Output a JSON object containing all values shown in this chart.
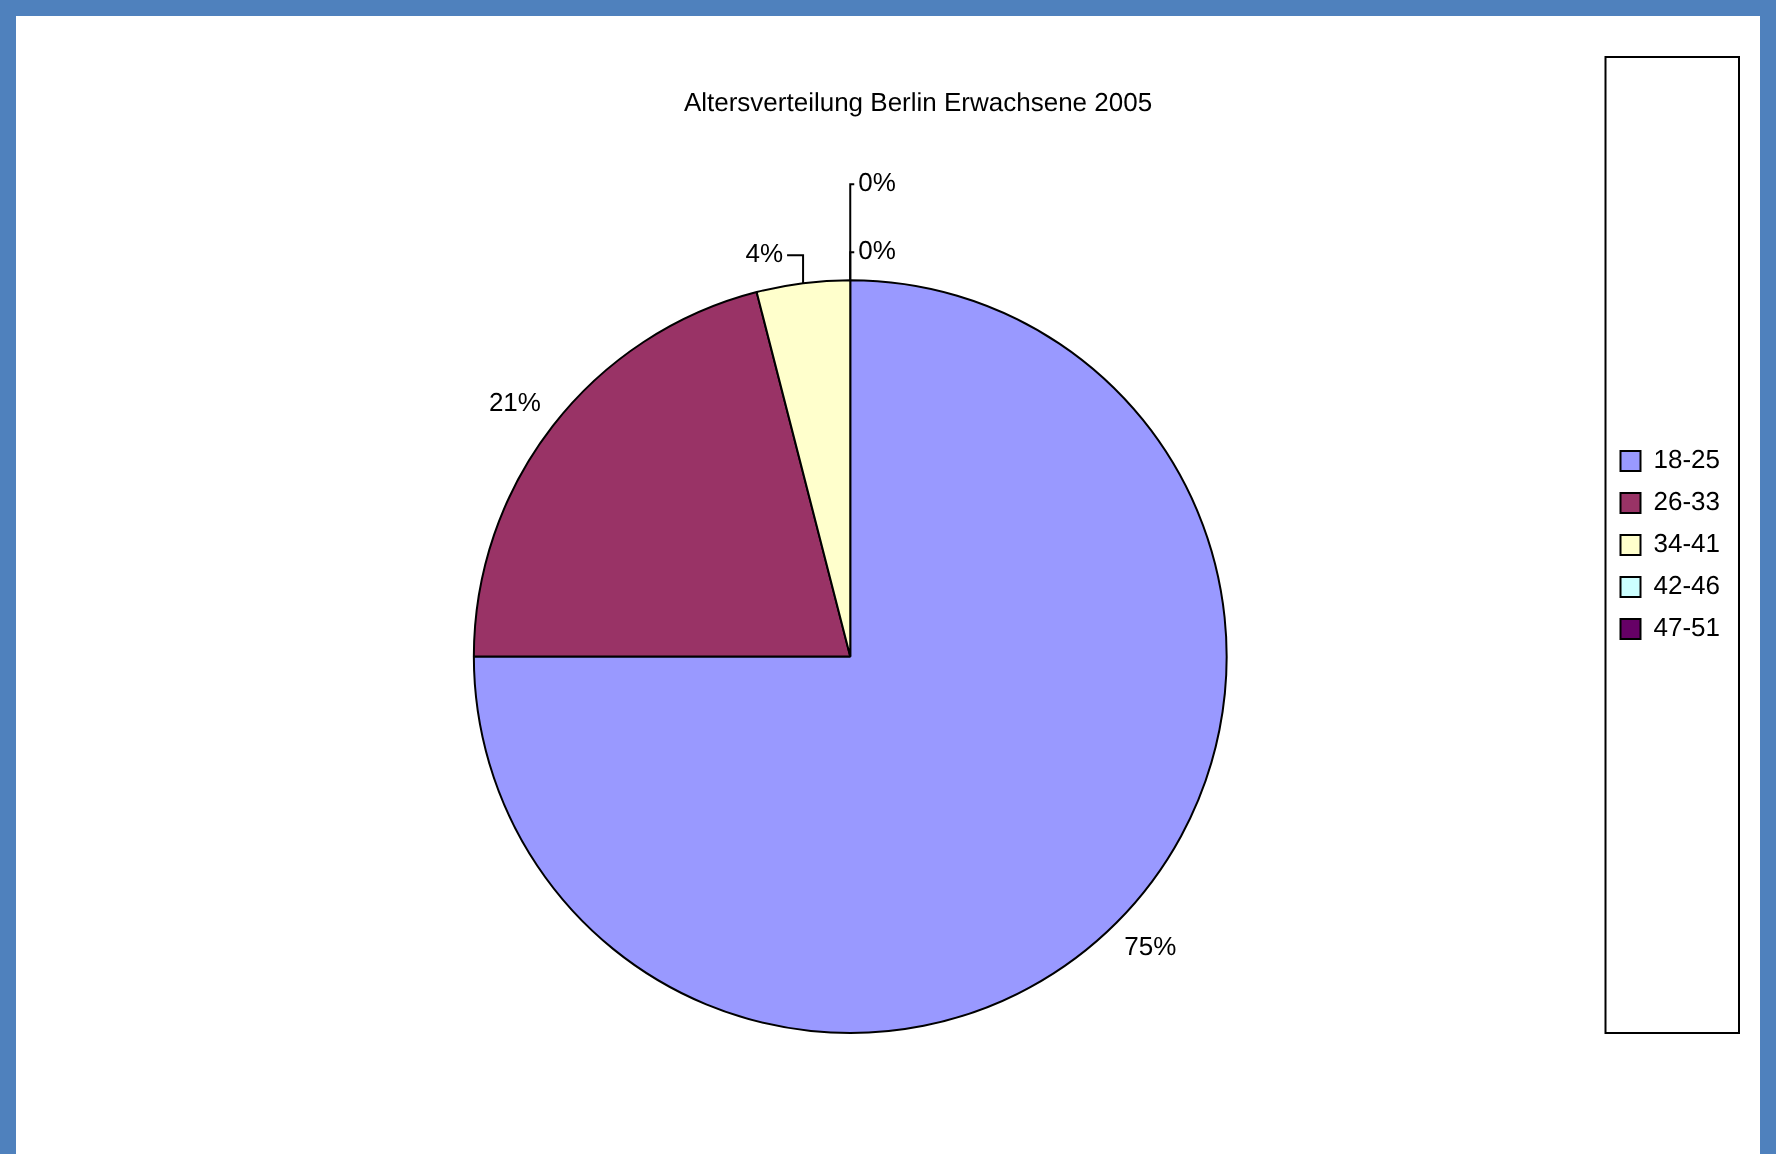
{
  "chart_data": {
    "type": "pie",
    "title": "Altersverteilung Berlin Erwachsene 2005",
    "categories": [
      "18-25",
      "26-33",
      "34-41",
      "42-46",
      "47-51"
    ],
    "values": [
      75,
      21,
      4,
      0,
      0
    ],
    "colors": [
      "#9999ff",
      "#993366",
      "#ffffcc",
      "#ccffff",
      "#660066"
    ],
    "value_labels": [
      "75%",
      "21%",
      "4%",
      "0%",
      "0%"
    ],
    "legend": "right"
  }
}
